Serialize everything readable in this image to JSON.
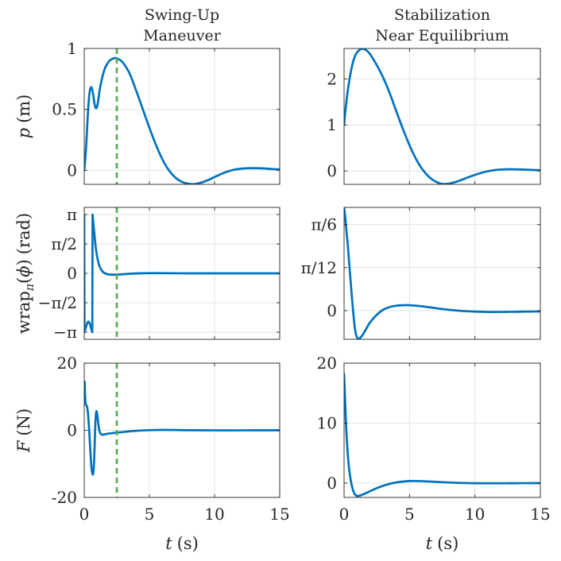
{
  "chart_data": [
    {
      "type": "line",
      "title": [
        "Swing-Up",
        "Maneuver"
      ],
      "ylabel": {
        "var": "p",
        "unit": "(m)"
      },
      "xlim": [
        0,
        15
      ],
      "ylim": [
        -0.115,
        1.0
      ],
      "xtick_values": [
        0,
        5,
        10,
        15
      ],
      "ytick_values": [
        0,
        0.5,
        1
      ],
      "ytick_labels": [
        "0",
        "0.5",
        "1"
      ],
      "grid": true,
      "series": [
        {
          "color": "#0072BD",
          "segments": [
            {
              "t": [
                0,
                0.1,
                0.2,
                0.3,
                0.4,
                0.5,
                0.6,
                0.7,
                0.8,
                0.9,
                1.0,
                1.1,
                1.2,
                1.4,
                1.6,
                1.8,
                2.0,
                2.3,
                2.6,
                3.0,
                3.5,
                4.0,
                4.5,
                5.0,
                5.5,
                6.0,
                6.5,
                7.0,
                7.5,
                8.0,
                8.5,
                9.0,
                9.5,
                10.0,
                10.5,
                11.0,
                11.5,
                12.0,
                12.5,
                13.0,
                13.5,
                14.0,
                14.5,
                15.0
              ],
              "y": [
                0,
                0.12,
                0.3,
                0.5,
                0.63,
                0.68,
                0.67,
                0.61,
                0.54,
                0.51,
                0.53,
                0.59,
                0.67,
                0.77,
                0.84,
                0.88,
                0.905,
                0.92,
                0.915,
                0.88,
                0.79,
                0.65,
                0.5,
                0.35,
                0.21,
                0.09,
                0.0,
                -0.06,
                -0.095,
                -0.11,
                -0.112,
                -0.1,
                -0.08,
                -0.055,
                -0.03,
                -0.01,
                0.005,
                0.013,
                0.017,
                0.018,
                0.017,
                0.014,
                0.01,
                0.008
              ]
            }
          ]
        }
      ],
      "vlines": [
        {
          "t": 2.5,
          "color": "#5AAA55"
        }
      ]
    },
    {
      "type": "line",
      "title": [
        "Stabilization",
        "Near Equilibrium"
      ],
      "xlim": [
        0,
        15
      ],
      "ylim": [
        -0.29,
        2.66
      ],
      "xtick_values": [
        0,
        5,
        10,
        15
      ],
      "ytick_values": [
        0,
        1,
        2
      ],
      "ytick_labels": [
        "0",
        "1",
        "2"
      ],
      "grid": true,
      "series": [
        {
          "color": "#0072BD",
          "segments": [
            {
              "t": [
                0,
                0.1,
                0.2,
                0.3,
                0.5,
                0.75,
                1.0,
                1.25,
                1.5,
                1.75,
                2.0,
                2.5,
                3.0,
                3.5,
                4.0,
                4.5,
                5.0,
                5.5,
                6.0,
                6.5,
                7.0,
                7.5,
                8.0,
                8.5,
                9.0,
                9.5,
                10.0,
                10.5,
                11.0,
                11.5,
                12.0,
                12.5,
                13.0,
                13.5,
                14.0,
                14.5,
                15.0
              ],
              "y": [
                1.0,
                1.3,
                1.56,
                1.78,
                2.13,
                2.43,
                2.58,
                2.64,
                2.65,
                2.61,
                2.53,
                2.3,
                2.02,
                1.68,
                1.29,
                0.91,
                0.56,
                0.26,
                0.03,
                -0.13,
                -0.23,
                -0.28,
                -0.275,
                -0.24,
                -0.19,
                -0.135,
                -0.085,
                -0.04,
                -0.005,
                0.02,
                0.032,
                0.037,
                0.037,
                0.034,
                0.028,
                0.022,
                0.016
              ]
            }
          ]
        }
      ]
    },
    {
      "type": "line",
      "ylabel": {
        "fn": "wrap",
        "sub": "π",
        "lparen": "(",
        "var": "ϕ",
        "rparen": ")",
        "unit": "(rad)"
      },
      "xlim": [
        0,
        15
      ],
      "ylim": [
        -3.52,
        3.52
      ],
      "xtick_values": [
        0,
        5,
        10,
        15
      ],
      "ytick_values": [
        3.1416,
        1.5708,
        0,
        -1.5708,
        -3.1416
      ],
      "ytick_labels": [
        "π",
        "π/2",
        "0",
        "−π/2",
        "−π"
      ],
      "grid": true,
      "series": [
        {
          "color": "#0072BD",
          "segments": [
            {
              "t": [
                0,
                0.02
              ],
              "y": [
                3.1416,
                -3.13
              ]
            },
            {
              "t": [
                0.02,
                0.1,
                0.2,
                0.3,
                0.4,
                0.5,
                0.58,
                0.62
              ],
              "y": [
                -3.13,
                -2.95,
                -2.72,
                -2.58,
                -2.64,
                -2.86,
                -3.06,
                -3.135
              ]
            },
            {
              "t": [
                0.62,
                0.64
              ],
              "y": [
                -3.135,
                3.13
              ]
            },
            {
              "t": [
                0.64,
                0.7,
                0.8,
                0.9,
                1.0,
                1.1,
                1.2,
                1.4,
                1.6,
                1.8,
                2.0,
                2.5,
                3.0,
                3.5,
                4.0,
                5.0,
                6.0,
                8.0,
                10.0,
                12.0,
                15.0
              ],
              "y": [
                3.13,
                2.7,
                1.95,
                1.3,
                0.85,
                0.55,
                0.33,
                0.1,
                0.0,
                -0.05,
                -0.07,
                -0.07,
                -0.045,
                -0.02,
                -0.005,
                0.01,
                0.01,
                0.0,
                0.0,
                0.0,
                0.0
              ]
            }
          ]
        }
      ],
      "vlines": [
        {
          "t": 2.5,
          "color": "#5AAA55"
        }
      ]
    },
    {
      "type": "line",
      "xlim": [
        0,
        15
      ],
      "ylim": [
        -0.1745,
        0.6283
      ],
      "xtick_values": [
        0,
        5,
        10,
        15
      ],
      "ytick_values": [
        0.5236,
        0.2618,
        0
      ],
      "ytick_labels": [
        "π/6",
        "π/12",
        "0"
      ],
      "grid": true,
      "series": [
        {
          "color": "#0072BD",
          "segments": [
            {
              "t": [
                0,
                0.1,
                0.2,
                0.3,
                0.4,
                0.5,
                0.6,
                0.7,
                0.8,
                0.9,
                1.0,
                1.1,
                1.2,
                1.4,
                1.7,
                2.0,
                2.5,
                3.0,
                3.5,
                4.0,
                4.5,
                5.0,
                5.5,
                6.0,
                7.0,
                8.0,
                9.0,
                10.0,
                11.0,
                12.0,
                13.0,
                14.0,
                15.0
              ],
              "y": [
                0.628,
                0.56,
                0.47,
                0.385,
                0.28,
                0.18,
                0.08,
                -0.01,
                -0.09,
                -0.14,
                -0.165,
                -0.172,
                -0.168,
                -0.15,
                -0.11,
                -0.07,
                -0.025,
                0.006,
                0.022,
                0.03,
                0.033,
                0.033,
                0.03,
                0.026,
                0.015,
                0.005,
                -0.002,
                -0.006,
                -0.008,
                -0.008,
                -0.007,
                -0.006,
                -0.005
              ]
            }
          ]
        }
      ]
    },
    {
      "type": "line",
      "ylabel": {
        "var": "F",
        "unit": "(N)"
      },
      "xlabel": {
        "var": "t",
        "unit": "(s)"
      },
      "xlim": [
        0,
        15
      ],
      "ylim": [
        -20,
        20
      ],
      "xtick_values": [
        0,
        5,
        10,
        15
      ],
      "xtick_labels": [
        "0",
        "5",
        "10",
        "15"
      ],
      "ytick_values": [
        20,
        0,
        -20
      ],
      "ytick_labels": [
        "20",
        "0",
        "-20"
      ],
      "grid": true,
      "series": [
        {
          "color": "#0072BD",
          "segments": [
            {
              "t": [
                0,
                0.03,
                0.06,
                0.1,
                0.15,
                0.22,
                0.3,
                0.38,
                0.46,
                0.54,
                0.62,
                0.68,
                0.74,
                0.8,
                0.86,
                0.92,
                0.98,
                1.05,
                1.12,
                1.2,
                1.3,
                1.45,
                1.7,
                2.0,
                2.5,
                3.0,
                3.5,
                4.0,
                5.0,
                6.0,
                7.0,
                8.0,
                10.0,
                12.0,
                15.0
              ],
              "y": [
                11,
                14.5,
                11,
                8,
                7.5,
                7,
                4.5,
                0,
                -5.5,
                -10.5,
                -12.8,
                -13,
                -10.5,
                -4.5,
                2.5,
                5.5,
                5.2,
                3,
                0.8,
                -0.6,
                -1.2,
                -1.3,
                -1.1,
                -0.9,
                -0.7,
                -0.5,
                -0.3,
                -0.15,
                0.05,
                0.12,
                0.08,
                0.03,
                -0.02,
                -0.01,
                0
              ]
            }
          ]
        }
      ],
      "vlines": [
        {
          "t": 2.5,
          "color": "#5AAA55"
        }
      ]
    },
    {
      "type": "line",
      "xlabel": {
        "var": "t",
        "unit": "(s)"
      },
      "xlim": [
        0,
        15
      ],
      "ylim": [
        -2.4,
        20
      ],
      "xtick_values": [
        0,
        5,
        10,
        15
      ],
      "xtick_labels": [
        "0",
        "5",
        "10",
        "15"
      ],
      "ytick_values": [
        20,
        10,
        0
      ],
      "ytick_labels": [
        "20",
        "10",
        "0"
      ],
      "grid": true,
      "series": [
        {
          "color": "#0072BD",
          "segments": [
            {
              "t": [
                0,
                0.05,
                0.1,
                0.15,
                0.2,
                0.25,
                0.3,
                0.4,
                0.5,
                0.6,
                0.7,
                0.8,
                0.9,
                1.0,
                1.2,
                1.5,
                2.0,
                2.5,
                3.0,
                3.5,
                4.0,
                4.5,
                5.0,
                5.5,
                6.0,
                7.0,
                8.0,
                9.0,
                10.0,
                11.0,
                12.0,
                13.0,
                14.0,
                15.0
              ],
              "y": [
                18.2,
                15.5,
                12.5,
                9.8,
                7.6,
                5.8,
                4.3,
                2.1,
                0.6,
                -0.5,
                -1.3,
                -1.8,
                -2.05,
                -2.15,
                -2.1,
                -1.85,
                -1.35,
                -0.85,
                -0.45,
                -0.12,
                0.1,
                0.25,
                0.33,
                0.34,
                0.31,
                0.2,
                0.09,
                0.01,
                -0.03,
                -0.04,
                -0.04,
                -0.03,
                -0.02,
                -0.01
              ]
            }
          ]
        }
      ]
    }
  ]
}
